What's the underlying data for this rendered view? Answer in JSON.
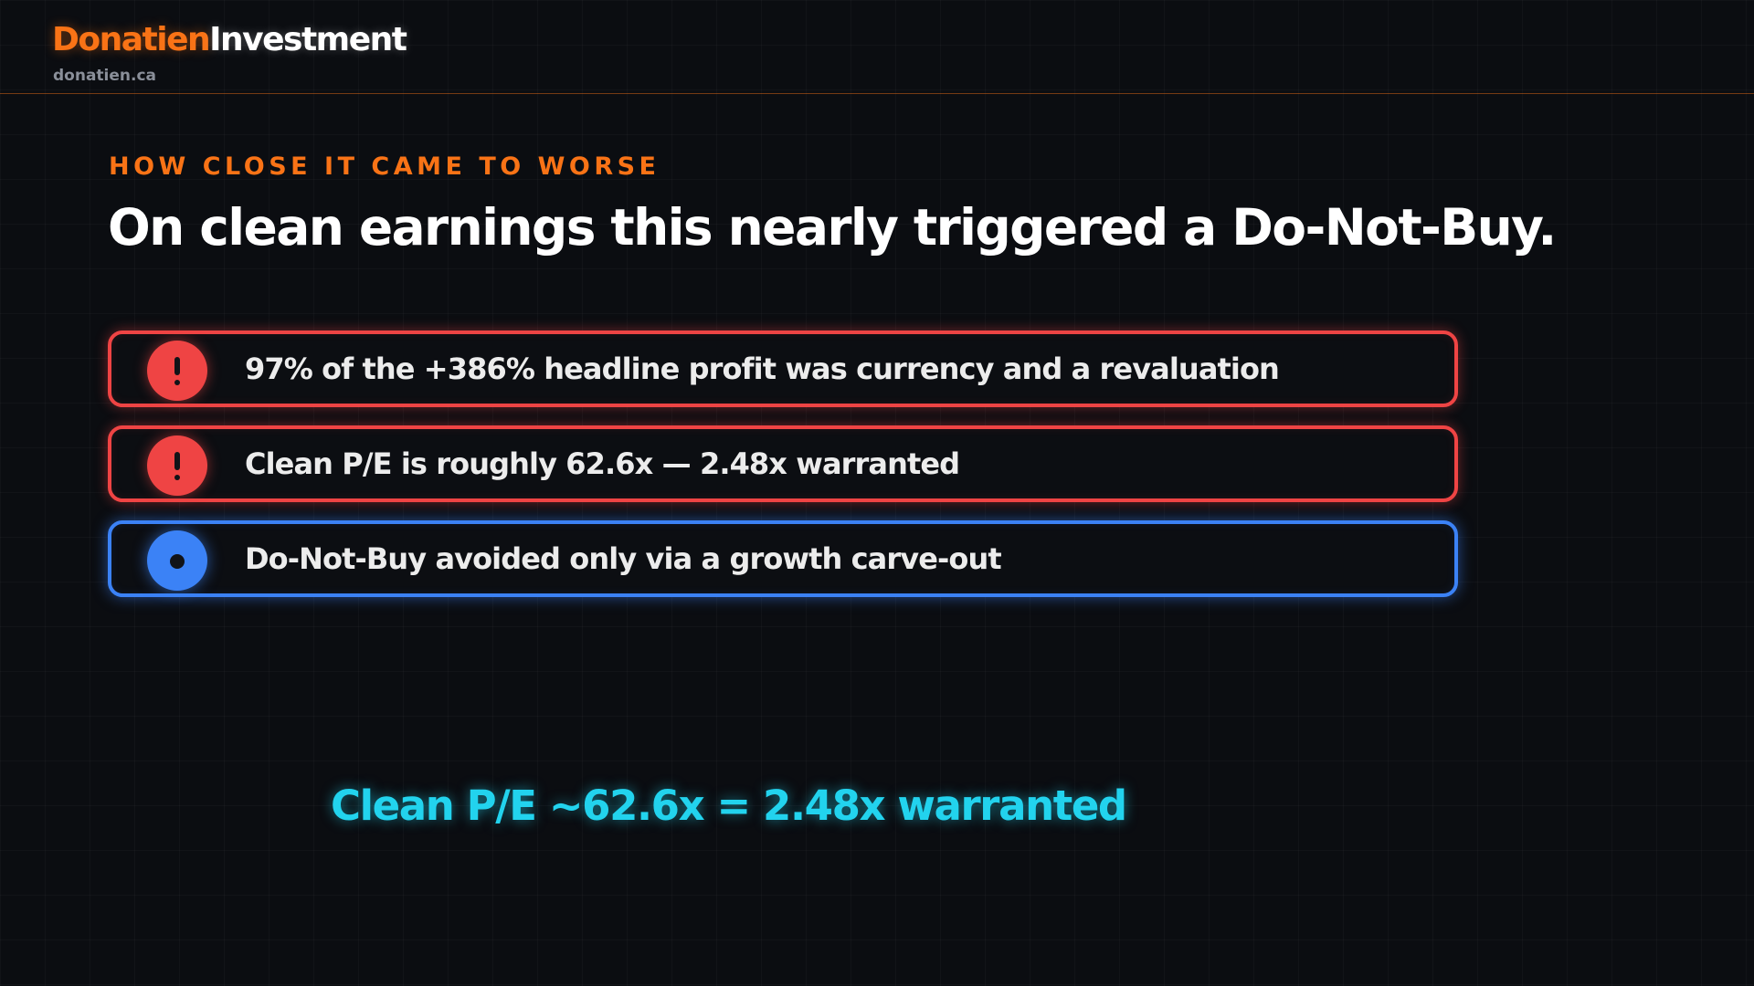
{
  "brand": {
    "name_part1": "Donatien",
    "name_part2": "Investment",
    "domain": "donatien.ca"
  },
  "slide": {
    "eyebrow": "HOW CLOSE IT CAME TO WORSE",
    "headline": "On clean earnings this nearly triggered a Do-Not-Buy."
  },
  "points": [
    {
      "text": "97% of the +386% headline profit was currency and a revaluation",
      "icon": "exclamation-icon",
      "color": "#ef4444"
    },
    {
      "text": "Clean P/E is roughly 62.6x — 2.48x warranted",
      "icon": "exclamation-icon",
      "color": "#ef4444"
    },
    {
      "text": "Do-Not-Buy avoided only via a growth carve-out",
      "icon": "dot-icon",
      "color": "#3b82f6"
    }
  ],
  "callout": "Clean P/E ~62.6x = 2.48x warranted",
  "colors": {
    "accent": "#f97316",
    "warning": "#ef4444",
    "info": "#3b82f6",
    "highlight": "#22d3ee",
    "background": "#0b0d11"
  }
}
